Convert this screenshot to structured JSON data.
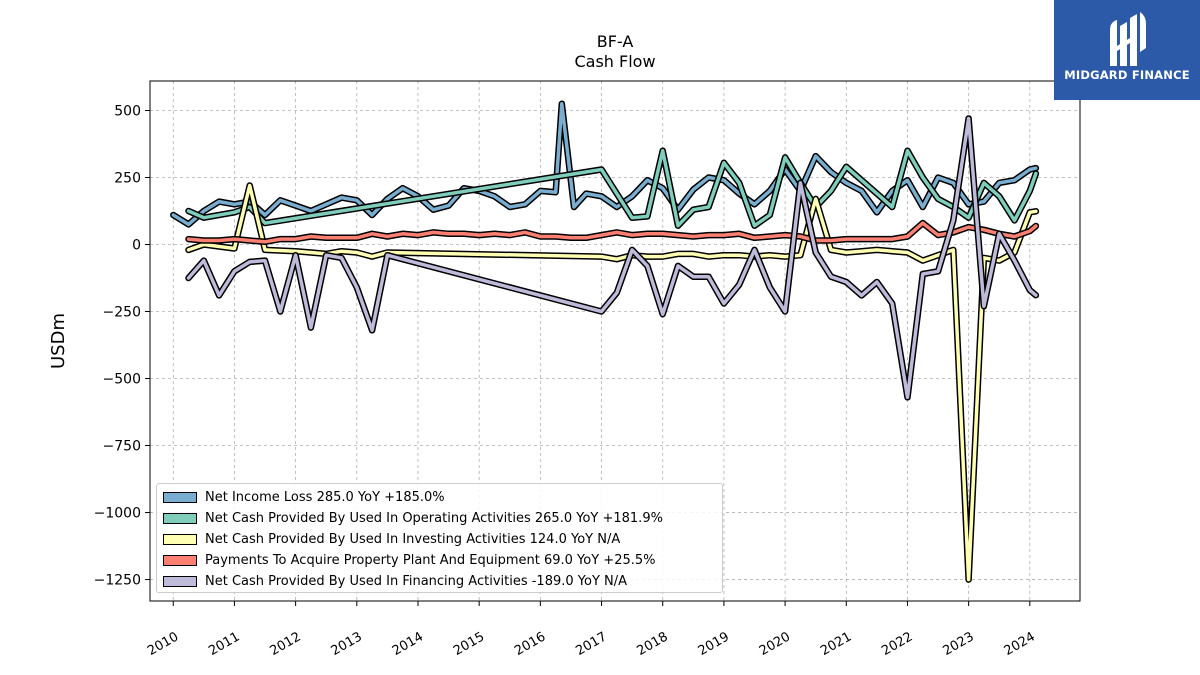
{
  "header": {
    "ticker": "BF-A",
    "subtitle": "Cash Flow"
  },
  "logo": {
    "text": "MIDGARD FINANCE",
    "icon": "midgard-logo-icon",
    "background": "#2d5aa8"
  },
  "chart_data": {
    "type": "line",
    "title": "BF-A",
    "subtitle": "Cash Flow",
    "ylabel": "USDm",
    "xlabel": "",
    "ylim": [
      -1330,
      610
    ],
    "xlim": [
      2009.62,
      2024.82
    ],
    "yticks": [
      500,
      250,
      0,
      -250,
      -500,
      -750,
      -1000,
      -1250
    ],
    "ytick_labels": [
      "500",
      "250",
      "0",
      "−250",
      "−500",
      "−750",
      "−1000",
      "−1250"
    ],
    "xticks": [
      2010,
      2011,
      2012,
      2013,
      2014,
      2015,
      2016,
      2017,
      2018,
      2019,
      2020,
      2021,
      2022,
      2023,
      2024
    ],
    "xtick_labels": [
      "2010",
      "2011",
      "2012",
      "2013",
      "2014",
      "2015",
      "2016",
      "2017",
      "2018",
      "2019",
      "2020",
      "2021",
      "2022",
      "2023",
      "2024"
    ],
    "grid": true,
    "legend_position": "lower-left",
    "series": [
      {
        "name": "Net Income Loss",
        "legend_label": "Net Income Loss  285.0 YoY +185.0%",
        "color": "#7aaed0",
        "points": [
          [
            2010.0,
            110
          ],
          [
            2010.25,
            75
          ],
          [
            2010.5,
            125
          ],
          [
            2010.75,
            160
          ],
          [
            2011.0,
            150
          ],
          [
            2011.25,
            160
          ],
          [
            2011.5,
            110
          ],
          [
            2011.75,
            165
          ],
          [
            2012.0,
            145
          ],
          [
            2012.25,
            125
          ],
          [
            2012.5,
            150
          ],
          [
            2012.75,
            175
          ],
          [
            2013.0,
            165
          ],
          [
            2013.25,
            110
          ],
          [
            2013.5,
            170
          ],
          [
            2013.75,
            210
          ],
          [
            2014.0,
            180
          ],
          [
            2014.25,
            130
          ],
          [
            2014.5,
            145
          ],
          [
            2014.75,
            210
          ],
          [
            2015.0,
            200
          ],
          [
            2015.25,
            180
          ],
          [
            2015.5,
            140
          ],
          [
            2015.75,
            150
          ],
          [
            2016.0,
            200
          ],
          [
            2016.25,
            195
          ],
          [
            2016.35,
            525
          ],
          [
            2016.55,
            140
          ],
          [
            2016.75,
            190
          ],
          [
            2017.0,
            180
          ],
          [
            2017.25,
            140
          ],
          [
            2017.5,
            180
          ],
          [
            2017.75,
            240
          ],
          [
            2018.0,
            210
          ],
          [
            2018.25,
            130
          ],
          [
            2018.5,
            205
          ],
          [
            2018.75,
            250
          ],
          [
            2019.0,
            240
          ],
          [
            2019.25,
            190
          ],
          [
            2019.5,
            150
          ],
          [
            2019.75,
            200
          ],
          [
            2020.0,
            280
          ],
          [
            2020.25,
            200
          ],
          [
            2020.5,
            330
          ],
          [
            2020.75,
            270
          ],
          [
            2021.0,
            230
          ],
          [
            2021.25,
            200
          ],
          [
            2021.5,
            120
          ],
          [
            2021.75,
            200
          ],
          [
            2022.0,
            240
          ],
          [
            2022.25,
            140
          ],
          [
            2022.5,
            250
          ],
          [
            2022.75,
            230
          ],
          [
            2023.0,
            150
          ],
          [
            2023.25,
            160
          ],
          [
            2023.5,
            230
          ],
          [
            2023.75,
            240
          ],
          [
            2024.0,
            280
          ],
          [
            2024.1,
            285
          ]
        ]
      },
      {
        "name": "Net Cash Provided By Used In Operating Activities",
        "legend_label": "Net Cash Provided By Used In Operating Activities  265.0 YoY +181.9%",
        "color": "#7fcdbb",
        "points": [
          [
            2010.25,
            125
          ],
          [
            2010.5,
            100
          ],
          [
            2011.0,
            120
          ],
          [
            2011.25,
            140
          ],
          [
            2011.5,
            80
          ],
          [
            2017.0,
            280
          ],
          [
            2017.5,
            100
          ],
          [
            2017.75,
            105
          ],
          [
            2018.0,
            350
          ],
          [
            2018.25,
            70
          ],
          [
            2018.5,
            130
          ],
          [
            2018.75,
            140
          ],
          [
            2019.0,
            305
          ],
          [
            2019.25,
            230
          ],
          [
            2019.5,
            70
          ],
          [
            2019.75,
            110
          ],
          [
            2020.0,
            325
          ],
          [
            2020.25,
            230
          ],
          [
            2020.5,
            140
          ],
          [
            2020.75,
            200
          ],
          [
            2021.0,
            290
          ],
          [
            2021.25,
            240
          ],
          [
            2021.5,
            190
          ],
          [
            2021.75,
            140
          ],
          [
            2022.0,
            350
          ],
          [
            2022.25,
            250
          ],
          [
            2022.5,
            170
          ],
          [
            2022.75,
            140
          ],
          [
            2023.0,
            100
          ],
          [
            2023.25,
            230
          ],
          [
            2023.5,
            180
          ],
          [
            2023.75,
            90
          ],
          [
            2024.0,
            200
          ],
          [
            2024.1,
            265
          ]
        ]
      },
      {
        "name": "Net Cash Provided By Used In Investing Activities",
        "legend_label": "Net Cash Provided By Used In Investing Activities  124.0 YoY N/A",
        "color": "#ffffb3",
        "points": [
          [
            2010.25,
            -20
          ],
          [
            2010.5,
            0
          ],
          [
            2011.0,
            -15
          ],
          [
            2011.25,
            220
          ],
          [
            2011.5,
            -20
          ],
          [
            2012.0,
            -25
          ],
          [
            2012.25,
            -30
          ],
          [
            2012.5,
            -35
          ],
          [
            2012.75,
            -25
          ],
          [
            2013.0,
            -30
          ],
          [
            2013.25,
            -45
          ],
          [
            2013.5,
            -30
          ],
          [
            2017.0,
            -45
          ],
          [
            2017.25,
            -55
          ],
          [
            2017.5,
            -40
          ],
          [
            2017.75,
            -45
          ],
          [
            2018.0,
            -45
          ],
          [
            2018.25,
            -35
          ],
          [
            2018.5,
            -35
          ],
          [
            2018.75,
            -45
          ],
          [
            2019.0,
            -40
          ],
          [
            2019.25,
            -40
          ],
          [
            2019.5,
            -45
          ],
          [
            2019.75,
            -40
          ],
          [
            2020.0,
            -45
          ],
          [
            2020.25,
            -40
          ],
          [
            2020.5,
            170
          ],
          [
            2020.75,
            -20
          ],
          [
            2021.0,
            -30
          ],
          [
            2021.25,
            -25
          ],
          [
            2021.5,
            -20
          ],
          [
            2021.75,
            -25
          ],
          [
            2022.0,
            -30
          ],
          [
            2022.25,
            -60
          ],
          [
            2022.5,
            -40
          ],
          [
            2022.75,
            -20
          ],
          [
            2023.0,
            -1250
          ],
          [
            2023.25,
            -50
          ],
          [
            2023.5,
            -60
          ],
          [
            2023.75,
            -30
          ],
          [
            2024.0,
            120
          ],
          [
            2024.1,
            124
          ]
        ]
      },
      {
        "name": "Payments To Acquire Property Plant And Equipment",
        "legend_label": "Payments To Acquire Property Plant And Equipment  69.0 YoY +25.5%",
        "color": "#fb8072",
        "points": [
          [
            2010.25,
            20
          ],
          [
            2010.5,
            15
          ],
          [
            2010.75,
            15
          ],
          [
            2011.0,
            20
          ],
          [
            2011.25,
            15
          ],
          [
            2011.5,
            10
          ],
          [
            2011.75,
            20
          ],
          [
            2012.0,
            20
          ],
          [
            2012.25,
            30
          ],
          [
            2012.5,
            25
          ],
          [
            2012.75,
            25
          ],
          [
            2013.0,
            25
          ],
          [
            2013.25,
            40
          ],
          [
            2013.5,
            30
          ],
          [
            2013.75,
            40
          ],
          [
            2014.0,
            35
          ],
          [
            2014.25,
            45
          ],
          [
            2014.5,
            40
          ],
          [
            2014.75,
            40
          ],
          [
            2015.0,
            35
          ],
          [
            2015.25,
            40
          ],
          [
            2015.5,
            35
          ],
          [
            2015.75,
            45
          ],
          [
            2016.0,
            30
          ],
          [
            2016.25,
            30
          ],
          [
            2016.5,
            25
          ],
          [
            2016.75,
            25
          ],
          [
            2017.0,
            35
          ],
          [
            2017.25,
            45
          ],
          [
            2017.5,
            35
          ],
          [
            2017.75,
            40
          ],
          [
            2018.0,
            40
          ],
          [
            2018.25,
            35
          ],
          [
            2018.5,
            30
          ],
          [
            2018.75,
            35
          ],
          [
            2019.0,
            35
          ],
          [
            2019.25,
            40
          ],
          [
            2019.5,
            25
          ],
          [
            2019.75,
            30
          ],
          [
            2020.0,
            35
          ],
          [
            2020.25,
            30
          ],
          [
            2020.5,
            15
          ],
          [
            2020.75,
            15
          ],
          [
            2021.0,
            20
          ],
          [
            2021.25,
            20
          ],
          [
            2021.5,
            20
          ],
          [
            2021.75,
            20
          ],
          [
            2022.0,
            30
          ],
          [
            2022.25,
            80
          ],
          [
            2022.5,
            35
          ],
          [
            2022.75,
            45
          ],
          [
            2023.0,
            65
          ],
          [
            2023.25,
            55
          ],
          [
            2023.5,
            40
          ],
          [
            2023.75,
            30
          ],
          [
            2024.0,
            50
          ],
          [
            2024.1,
            69
          ]
        ]
      },
      {
        "name": "Net Cash Provided By Used In Financing Activities",
        "legend_label": "Net Cash Provided By Used In Financing Activities  -189.0 YoY N/A",
        "color": "#bebada",
        "points": [
          [
            2010.25,
            -125
          ],
          [
            2010.5,
            -60
          ],
          [
            2010.75,
            -190
          ],
          [
            2011.0,
            -100
          ],
          [
            2011.25,
            -65
          ],
          [
            2011.5,
            -60
          ],
          [
            2011.75,
            -250
          ],
          [
            2012.0,
            -40
          ],
          [
            2012.25,
            -310
          ],
          [
            2012.5,
            -40
          ],
          [
            2012.75,
            -50
          ],
          [
            2013.0,
            -160
          ],
          [
            2013.25,
            -320
          ],
          [
            2013.5,
            -40
          ],
          [
            2017.0,
            -250
          ],
          [
            2017.25,
            -180
          ],
          [
            2017.5,
            -20
          ],
          [
            2017.75,
            -80
          ],
          [
            2018.0,
            -260
          ],
          [
            2018.25,
            -80
          ],
          [
            2018.5,
            -120
          ],
          [
            2018.75,
            -120
          ],
          [
            2019.0,
            -220
          ],
          [
            2019.25,
            -150
          ],
          [
            2019.5,
            -20
          ],
          [
            2019.75,
            -160
          ],
          [
            2020.0,
            -250
          ],
          [
            2020.25,
            230
          ],
          [
            2020.5,
            -30
          ],
          [
            2020.75,
            -120
          ],
          [
            2021.0,
            -140
          ],
          [
            2021.25,
            -190
          ],
          [
            2021.5,
            -140
          ],
          [
            2021.75,
            -220
          ],
          [
            2022.0,
            -570
          ],
          [
            2022.25,
            -110
          ],
          [
            2022.5,
            -100
          ],
          [
            2022.75,
            90
          ],
          [
            2023.0,
            470
          ],
          [
            2023.25,
            -230
          ],
          [
            2023.5,
            40
          ],
          [
            2023.75,
            -60
          ],
          [
            2024.0,
            -170
          ],
          [
            2024.1,
            -189
          ]
        ]
      }
    ]
  }
}
